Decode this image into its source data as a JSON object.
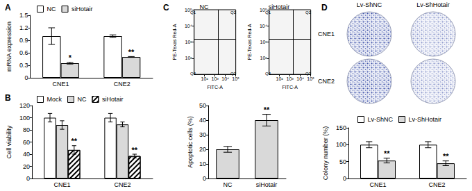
{
  "chart_data": [
    {
      "type": "bar",
      "title": "A",
      "y_label": "mRNA expression",
      "categories": [
        "CNE1",
        "CNE2"
      ],
      "series": [
        {
          "name": "NC",
          "color": "#ffffff",
          "values": [
            1.0,
            1.0
          ],
          "errors": [
            0.2,
            0.03
          ]
        },
        {
          "name": "siHotair",
          "color": "#d9d9d9",
          "values": [
            0.35,
            0.5
          ],
          "errors": [
            0.02,
            0.01
          ],
          "annotations": [
            "*",
            "**"
          ]
        }
      ],
      "ylim": [
        0,
        1.5
      ],
      "yticks": [
        0,
        0.3,
        0.6,
        0.9,
        1.2,
        1.5
      ],
      "grid": false,
      "legend": "top"
    },
    {
      "type": "bar",
      "title": "B",
      "y_label": "Cell viability",
      "categories": [
        "CNE1",
        "CNE2"
      ],
      "series": [
        {
          "name": "Mock",
          "color": "#ffffff",
          "values": [
            100,
            100
          ],
          "errors": [
            7,
            7
          ]
        },
        {
          "name": "NC",
          "color": "#d9d9d9",
          "values": [
            88,
            89
          ],
          "errors": [
            7,
            4
          ]
        },
        {
          "name": "siHotair",
          "color": "#ffffff",
          "values": [
            47,
            37
          ],
          "errors": [
            7,
            3
          ],
          "annotations": [
            "**",
            "**"
          ]
        }
      ],
      "ylim": [
        0,
        120
      ],
      "yticks": [
        0,
        20,
        40,
        60,
        80,
        100,
        120
      ],
      "grid": false,
      "legend": "top"
    },
    {
      "type": "bar",
      "title": "C",
      "y_label": "Apoptotic cells (%)",
      "categories": [
        "NC",
        "siHotair"
      ],
      "series": [
        {
          "color": "#d9d9d9",
          "values": [
            20,
            40
          ],
          "errors": [
            2,
            4
          ],
          "annotations": [
            null,
            "**"
          ]
        }
      ],
      "ylim": [
        0,
        50
      ],
      "yticks": [
        0,
        10,
        20,
        30,
        40,
        50
      ],
      "grid": false
    },
    {
      "type": "scatter",
      "title": "NC",
      "x_label": "FITC-A",
      "y_label": "PE-Texas Red-A",
      "log": true,
      "xlim": [
        10,
        100000
      ],
      "ylim": [
        10,
        100000
      ],
      "xticks": [
        {
          "value": 100,
          "label": "10²"
        },
        {
          "value": 1000,
          "label": "10³"
        },
        {
          "value": 10000,
          "label": "10⁴"
        },
        {
          "value": 100000,
          "label": "10⁵"
        }
      ],
      "yticks": [
        {
          "value": 100,
          "label": "10²"
        },
        {
          "value": 1000,
          "label": "10³"
        },
        {
          "value": 10000,
          "label": "10⁴"
        },
        {
          "value": 100000,
          "label": "10⁵"
        }
      ],
      "gates": {
        "x": 2000,
        "y": 1500
      },
      "quadrants": [
        "Q1",
        "Q2",
        "Q3",
        "Q4"
      ]
    },
    {
      "type": "scatter",
      "title": "siHotair",
      "x_label": "FITC-A",
      "y_label": "PE-Texas Red-A",
      "log": true,
      "xlim": [
        10,
        100000
      ],
      "ylim": [
        10,
        100000
      ],
      "xticks": [
        {
          "value": 100,
          "label": "10²"
        },
        {
          "value": 1000,
          "label": "10³"
        },
        {
          "value": 10000,
          "label": "10⁴"
        },
        {
          "value": 100000,
          "label": "10⁵"
        }
      ],
      "yticks": [
        {
          "value": 100,
          "label": "10²"
        },
        {
          "value": 1000,
          "label": "10³"
        },
        {
          "value": 10000,
          "label": "10⁴"
        },
        {
          "value": 100000,
          "label": "10⁵"
        }
      ],
      "gates": {
        "x": 2000,
        "y": 1500
      },
      "quadrants": [
        "Q1",
        "Q2",
        "Q3",
        "Q4"
      ]
    },
    {
      "type": "bar",
      "title": "D",
      "y_label": "Colony number (%)",
      "categories": [
        "CNE1",
        "CNE2"
      ],
      "series": [
        {
          "name": "Lv-ShNC",
          "color": "#ffffff",
          "values": [
            100,
            100
          ],
          "errors": [
            9,
            9
          ]
        },
        {
          "name": "Lv-ShHotair",
          "color": "#d9d9d9",
          "values": [
            53,
            45
          ],
          "errors": [
            7,
            7
          ],
          "annotations": [
            "**",
            "**"
          ]
        }
      ],
      "ylim": [
        0,
        150
      ],
      "yticks": [
        0,
        50,
        100,
        150
      ],
      "grid": false,
      "legend": "top"
    }
  ],
  "images": {
    "columns": [
      "Lv-ShNC",
      "Lv-ShHotair"
    ],
    "rows": [
      "CNE1",
      "CNE2"
    ]
  }
}
